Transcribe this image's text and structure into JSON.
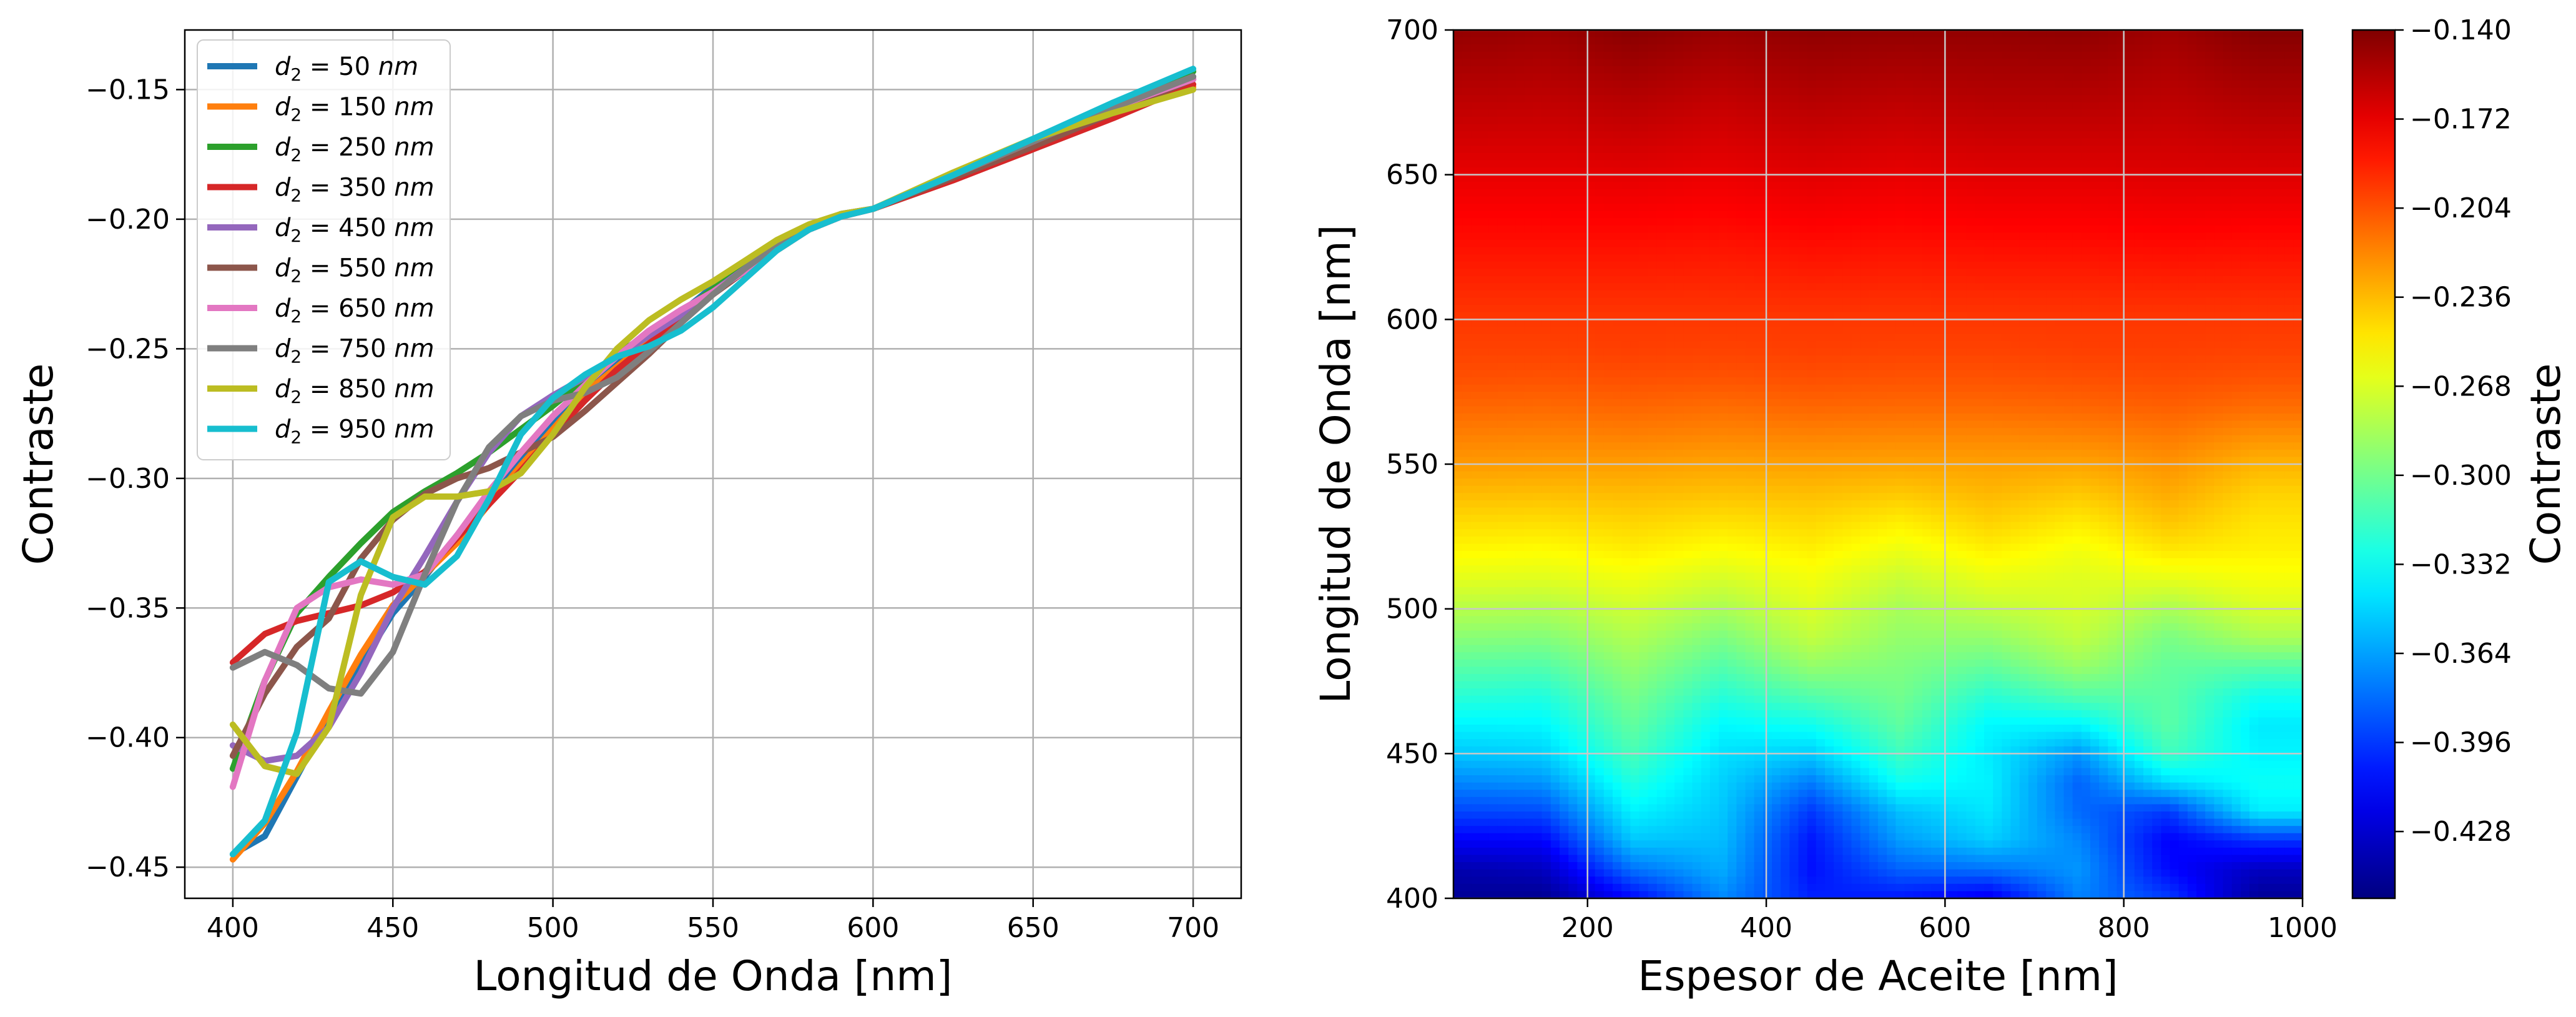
{
  "chart_data": [
    {
      "type": "line",
      "xlabel": "Longitud de Onda [nm]",
      "ylabel": "Contraste",
      "xlim": [
        385,
        715
      ],
      "ylim": [
        -0.462,
        -0.127
      ],
      "xticks": [
        400,
        450,
        500,
        550,
        600,
        650,
        700
      ],
      "xtick_labels": [
        "400",
        "450",
        "500",
        "550",
        "600",
        "650",
        "700"
      ],
      "yticks": [
        -0.45,
        -0.4,
        -0.35,
        -0.3,
        -0.25,
        -0.2,
        -0.15
      ],
      "ytick_labels": [
        "−0.45",
        "−0.40",
        "−0.35",
        "−0.30",
        "−0.25",
        "−0.20",
        "−0.15"
      ],
      "grid": true,
      "legend_position": "top-left",
      "x": [
        400,
        410,
        420,
        430,
        440,
        450,
        460,
        470,
        480,
        490,
        500,
        510,
        520,
        530,
        540,
        550,
        560,
        570,
        580,
        590,
        600,
        625,
        650,
        675,
        700
      ],
      "series": [
        {
          "name": "d₂ = 50 nm",
          "label_prefix": "d",
          "label_sub": "2",
          "label_mid": " = 50 ",
          "label_unit": "nm",
          "color": "#1f77b4",
          "values": [
            -0.445,
            -0.438,
            -0.415,
            -0.392,
            -0.372,
            -0.352,
            -0.338,
            -0.322,
            -0.308,
            -0.293,
            -0.279,
            -0.266,
            -0.255,
            -0.246,
            -0.236,
            -0.226,
            -0.218,
            -0.21,
            -0.203,
            -0.199,
            -0.196,
            -0.184,
            -0.172,
            -0.159,
            -0.146
          ]
        },
        {
          "name": "d₂ = 150 nm",
          "label_prefix": "d",
          "label_sub": "2",
          "label_mid": " = 150 ",
          "label_unit": "nm",
          "color": "#ff7f0e",
          "values": [
            -0.447,
            -0.433,
            -0.413,
            -0.39,
            -0.368,
            -0.349,
            -0.337,
            -0.325,
            -0.31,
            -0.295,
            -0.281,
            -0.267,
            -0.257,
            -0.247,
            -0.237,
            -0.227,
            -0.219,
            -0.211,
            -0.204,
            -0.199,
            -0.196,
            -0.184,
            -0.172,
            -0.16,
            -0.149
          ]
        },
        {
          "name": "d₂ = 250 nm",
          "label_prefix": "d",
          "label_sub": "2",
          "label_mid": " = 250 ",
          "label_unit": "nm",
          "color": "#2ca02c",
          "values": [
            -0.412,
            -0.378,
            -0.352,
            -0.338,
            -0.325,
            -0.313,
            -0.305,
            -0.298,
            -0.29,
            -0.281,
            -0.272,
            -0.262,
            -0.252,
            -0.244,
            -0.236,
            -0.227,
            -0.218,
            -0.21,
            -0.203,
            -0.198,
            -0.196,
            -0.184,
            -0.171,
            -0.157,
            -0.143
          ]
        },
        {
          "name": "d₂ = 350 nm",
          "label_prefix": "d",
          "label_sub": "2",
          "label_mid": " = 350 ",
          "label_unit": "nm",
          "color": "#d62728",
          "values": [
            -0.371,
            -0.36,
            -0.355,
            -0.352,
            -0.349,
            -0.344,
            -0.336,
            -0.323,
            -0.31,
            -0.297,
            -0.283,
            -0.27,
            -0.258,
            -0.248,
            -0.238,
            -0.229,
            -0.22,
            -0.212,
            -0.204,
            -0.199,
            -0.196,
            -0.185,
            -0.173,
            -0.161,
            -0.148
          ]
        },
        {
          "name": "d₂ = 450 nm",
          "label_prefix": "d",
          "label_sub": "2",
          "label_mid": " = 450 ",
          "label_unit": "nm",
          "color": "#9467bd",
          "values": [
            -0.403,
            -0.409,
            -0.407,
            -0.396,
            -0.375,
            -0.35,
            -0.33,
            -0.309,
            -0.29,
            -0.276,
            -0.268,
            -0.261,
            -0.253,
            -0.245,
            -0.237,
            -0.228,
            -0.219,
            -0.21,
            -0.203,
            -0.198,
            -0.196,
            -0.183,
            -0.17,
            -0.157,
            -0.145
          ]
        },
        {
          "name": "d₂ = 550 nm",
          "label_prefix": "d",
          "label_sub": "2",
          "label_mid": " = 550 ",
          "label_unit": "nm",
          "color": "#8c564b",
          "values": [
            -0.407,
            -0.383,
            -0.365,
            -0.354,
            -0.331,
            -0.316,
            -0.306,
            -0.3,
            -0.296,
            -0.29,
            -0.284,
            -0.274,
            -0.263,
            -0.252,
            -0.24,
            -0.229,
            -0.22,
            -0.211,
            -0.204,
            -0.199,
            -0.196,
            -0.184,
            -0.172,
            -0.159,
            -0.146
          ]
        },
        {
          "name": "d₂ = 650 nm",
          "label_prefix": "d",
          "label_sub": "2",
          "label_mid": " = 650 ",
          "label_unit": "nm",
          "color": "#e377c2",
          "values": [
            -0.419,
            -0.378,
            -0.35,
            -0.342,
            -0.339,
            -0.341,
            -0.337,
            -0.322,
            -0.305,
            -0.29,
            -0.276,
            -0.264,
            -0.253,
            -0.243,
            -0.235,
            -0.228,
            -0.22,
            -0.211,
            -0.204,
            -0.199,
            -0.196,
            -0.183,
            -0.17,
            -0.157,
            -0.146
          ]
        },
        {
          "name": "d₂ = 750 nm",
          "label_prefix": "d",
          "label_sub": "2",
          "label_mid": " = 750 ",
          "label_unit": "nm",
          "color": "#7f7f7f",
          "values": [
            -0.373,
            -0.367,
            -0.372,
            -0.381,
            -0.383,
            -0.367,
            -0.337,
            -0.309,
            -0.288,
            -0.276,
            -0.27,
            -0.267,
            -0.261,
            -0.251,
            -0.24,
            -0.229,
            -0.219,
            -0.21,
            -0.203,
            -0.198,
            -0.196,
            -0.183,
            -0.17,
            -0.157,
            -0.145
          ]
        },
        {
          "name": "d₂ = 850 nm",
          "label_prefix": "d",
          "label_sub": "2",
          "label_mid": " = 850 ",
          "label_unit": "nm",
          "color": "#bcbd22",
          "values": [
            -0.395,
            -0.411,
            -0.414,
            -0.396,
            -0.345,
            -0.315,
            -0.307,
            -0.307,
            -0.305,
            -0.298,
            -0.283,
            -0.265,
            -0.25,
            -0.239,
            -0.231,
            -0.224,
            -0.216,
            -0.208,
            -0.202,
            -0.198,
            -0.196,
            -0.182,
            -0.169,
            -0.159,
            -0.15
          ]
        },
        {
          "name": "d₂ = 950 nm",
          "label_prefix": "d",
          "label_sub": "2",
          "label_mid": " = 950 ",
          "label_unit": "nm",
          "color": "#17becf",
          "values": [
            -0.445,
            -0.432,
            -0.398,
            -0.34,
            -0.332,
            -0.338,
            -0.341,
            -0.33,
            -0.308,
            -0.283,
            -0.269,
            -0.26,
            -0.253,
            -0.249,
            -0.243,
            -0.234,
            -0.223,
            -0.212,
            -0.204,
            -0.199,
            -0.196,
            -0.183,
            -0.169,
            -0.155,
            -0.142
          ]
        }
      ]
    },
    {
      "type": "heatmap",
      "xlabel": "Espesor de Aceite [nm]",
      "ylabel": "Longitud de Onda [nm]",
      "xlim": [
        50,
        1000
      ],
      "ylim": [
        400,
        700
      ],
      "xticks": [
        200,
        400,
        600,
        800,
        1000
      ],
      "xtick_labels": [
        "200",
        "400",
        "600",
        "800",
        "1000"
      ],
      "yticks": [
        400,
        450,
        500,
        550,
        600,
        650,
        700
      ],
      "ytick_labels": [
        "400",
        "450",
        "500",
        "550",
        "600",
        "650",
        "700"
      ],
      "grid": true,
      "colormap": "jet",
      "colorbar": {
        "label": "Contraste",
        "vmin": -0.452,
        "vmax": -0.14,
        "ticks": [
          -0.14,
          -0.172,
          -0.204,
          -0.236,
          -0.268,
          -0.3,
          -0.332,
          -0.364,
          -0.396,
          -0.428
        ],
        "tick_labels": [
          "−0.140",
          "−0.172",
          "−0.204",
          "−0.236",
          "−0.268",
          "−0.300",
          "−0.332",
          "−0.364",
          "−0.396",
          "−0.428"
        ]
      },
      "thickness_values": [
        50,
        150,
        250,
        350,
        450,
        550,
        650,
        750,
        850,
        950,
        1000
      ],
      "wavelength_values": [
        400,
        410,
        420,
        430,
        440,
        450,
        460,
        470,
        480,
        490,
        500,
        510,
        520,
        530,
        540,
        550,
        560,
        570,
        580,
        590,
        600,
        625,
        650,
        675,
        700
      ],
      "contrast": [
        [
          -0.445,
          -0.447,
          -0.412,
          -0.371,
          -0.403,
          -0.407,
          -0.419,
          -0.373,
          -0.395,
          -0.445,
          -0.445
        ],
        [
          -0.438,
          -0.433,
          -0.378,
          -0.36,
          -0.409,
          -0.383,
          -0.378,
          -0.367,
          -0.411,
          -0.432,
          -0.432
        ],
        [
          -0.415,
          -0.413,
          -0.352,
          -0.355,
          -0.407,
          -0.365,
          -0.35,
          -0.372,
          -0.414,
          -0.398,
          -0.398
        ],
        [
          -0.392,
          -0.39,
          -0.338,
          -0.352,
          -0.396,
          -0.354,
          -0.342,
          -0.381,
          -0.396,
          -0.34,
          -0.34
        ],
        [
          -0.372,
          -0.368,
          -0.325,
          -0.349,
          -0.375,
          -0.331,
          -0.339,
          -0.383,
          -0.345,
          -0.332,
          -0.332
        ],
        [
          -0.352,
          -0.349,
          -0.313,
          -0.344,
          -0.35,
          -0.316,
          -0.341,
          -0.367,
          -0.315,
          -0.338,
          -0.338
        ],
        [
          -0.338,
          -0.337,
          -0.305,
          -0.336,
          -0.33,
          -0.306,
          -0.337,
          -0.337,
          -0.307,
          -0.341,
          -0.341
        ],
        [
          -0.322,
          -0.325,
          -0.298,
          -0.323,
          -0.309,
          -0.3,
          -0.322,
          -0.309,
          -0.307,
          -0.33,
          -0.33
        ],
        [
          -0.308,
          -0.31,
          -0.29,
          -0.31,
          -0.29,
          -0.296,
          -0.305,
          -0.288,
          -0.305,
          -0.308,
          -0.308
        ],
        [
          -0.293,
          -0.295,
          -0.281,
          -0.297,
          -0.276,
          -0.29,
          -0.29,
          -0.276,
          -0.298,
          -0.283,
          -0.283
        ],
        [
          -0.279,
          -0.281,
          -0.272,
          -0.283,
          -0.268,
          -0.284,
          -0.276,
          -0.27,
          -0.283,
          -0.269,
          -0.269
        ],
        [
          -0.266,
          -0.267,
          -0.262,
          -0.27,
          -0.261,
          -0.274,
          -0.264,
          -0.267,
          -0.265,
          -0.26,
          -0.26
        ],
        [
          -0.255,
          -0.257,
          -0.252,
          -0.258,
          -0.253,
          -0.263,
          -0.253,
          -0.261,
          -0.25,
          -0.253,
          -0.253
        ],
        [
          -0.246,
          -0.247,
          -0.244,
          -0.248,
          -0.245,
          -0.252,
          -0.243,
          -0.251,
          -0.239,
          -0.249,
          -0.249
        ],
        [
          -0.236,
          -0.237,
          -0.236,
          -0.238,
          -0.237,
          -0.24,
          -0.235,
          -0.24,
          -0.231,
          -0.243,
          -0.243
        ],
        [
          -0.226,
          -0.227,
          -0.227,
          -0.229,
          -0.228,
          -0.229,
          -0.228,
          -0.229,
          -0.224,
          -0.234,
          -0.234
        ],
        [
          -0.218,
          -0.219,
          -0.218,
          -0.22,
          -0.219,
          -0.22,
          -0.22,
          -0.219,
          -0.216,
          -0.223,
          -0.223
        ],
        [
          -0.21,
          -0.211,
          -0.21,
          -0.212,
          -0.21,
          -0.211,
          -0.211,
          -0.21,
          -0.208,
          -0.212,
          -0.212
        ],
        [
          -0.203,
          -0.204,
          -0.203,
          -0.204,
          -0.203,
          -0.204,
          -0.204,
          -0.203,
          -0.202,
          -0.204,
          -0.204
        ],
        [
          -0.199,
          -0.199,
          -0.198,
          -0.199,
          -0.198,
          -0.199,
          -0.199,
          -0.198,
          -0.198,
          -0.199,
          -0.199
        ],
        [
          -0.196,
          -0.196,
          -0.196,
          -0.196,
          -0.196,
          -0.196,
          -0.196,
          -0.196,
          -0.196,
          -0.196,
          -0.196
        ],
        [
          -0.184,
          -0.184,
          -0.184,
          -0.185,
          -0.183,
          -0.184,
          -0.183,
          -0.183,
          -0.182,
          -0.183,
          -0.183
        ],
        [
          -0.172,
          -0.172,
          -0.171,
          -0.173,
          -0.17,
          -0.172,
          -0.17,
          -0.17,
          -0.169,
          -0.169,
          -0.169
        ],
        [
          -0.159,
          -0.16,
          -0.157,
          -0.161,
          -0.157,
          -0.159,
          -0.157,
          -0.157,
          -0.159,
          -0.155,
          -0.155
        ],
        [
          -0.146,
          -0.149,
          -0.143,
          -0.148,
          -0.145,
          -0.146,
          -0.146,
          -0.145,
          -0.15,
          -0.142,
          -0.142
        ]
      ]
    }
  ]
}
